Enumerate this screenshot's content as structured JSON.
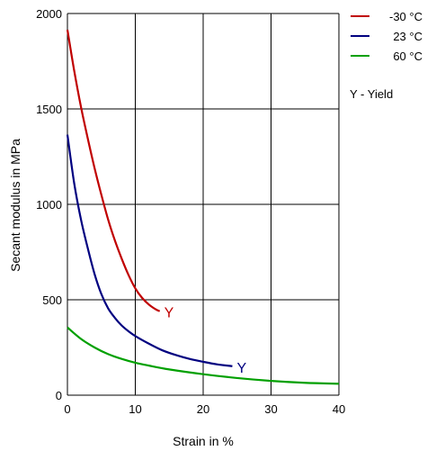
{
  "chart_data": {
    "type": "line",
    "xlabel": "Strain in %",
    "ylabel": "Secant modulus in MPa",
    "xlim": [
      0,
      40
    ],
    "ylim": [
      0,
      2000
    ],
    "x_ticks": [
      "0",
      "10",
      "20",
      "30",
      "40"
    ],
    "y_ticks": [
      "0",
      "500",
      "1000",
      "1500",
      "2000"
    ],
    "grid": true,
    "legend_position": "top-right, outside plot",
    "legend_note": "Y - Yield",
    "series": [
      {
        "name": "-30 °C",
        "color": "#c00000",
        "x": [
          0,
          1,
          2,
          3,
          4,
          5,
          6,
          7,
          8,
          9,
          10,
          11,
          12,
          13,
          13.6
        ],
        "y": [
          1915,
          1700,
          1510,
          1345,
          1190,
          1050,
          920,
          810,
          715,
          630,
          560,
          510,
          475,
          450,
          440
        ],
        "end_marker": "Y"
      },
      {
        "name": "23 °C",
        "color": "#000080",
        "x": [
          0,
          1,
          2,
          3,
          4,
          5,
          6,
          7,
          8,
          9,
          10,
          12,
          14,
          16,
          18,
          20,
          22,
          24.3
        ],
        "y": [
          1365,
          1110,
          920,
          770,
          635,
          530,
          455,
          405,
          365,
          335,
          310,
          270,
          235,
          210,
          190,
          175,
          162,
          152
        ],
        "end_marker": "Y"
      },
      {
        "name": "60 °C",
        "color": "#00a000",
        "x": [
          0,
          2,
          4,
          6,
          8,
          10,
          12,
          15,
          20,
          25,
          30,
          35,
          40
        ],
        "y": [
          355,
          295,
          250,
          215,
          190,
          170,
          155,
          135,
          110,
          90,
          75,
          65,
          60
        ]
      }
    ]
  }
}
